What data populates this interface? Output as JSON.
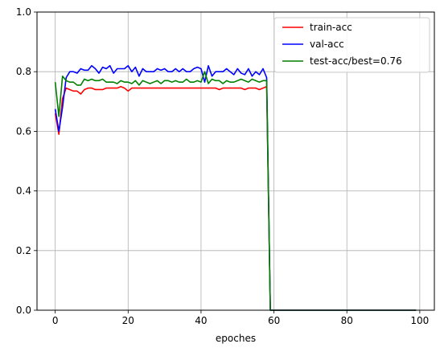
{
  "chart_data": {
    "type": "line",
    "xlabel": "epoches",
    "ylabel": "",
    "xlim": [
      -5,
      104
    ],
    "ylim": [
      0.0,
      1.0
    ],
    "xticks": [
      0,
      20,
      40,
      60,
      80,
      100
    ],
    "yticks": [
      0.0,
      0.2,
      0.4,
      0.6,
      0.8,
      1.0
    ],
    "xtick_labels": [
      "0",
      "20",
      "40",
      "60",
      "80",
      "100"
    ],
    "ytick_labels": [
      "0.0",
      "0.2",
      "0.4",
      "0.6",
      "0.8",
      "1.0"
    ],
    "grid": true,
    "legend_position": "top-right",
    "series": [
      {
        "name": "train-acc",
        "color": "#ff0000",
        "x": [
          0,
          1,
          2,
          3,
          4,
          5,
          6,
          7,
          8,
          9,
          10,
          11,
          12,
          13,
          14,
          15,
          16,
          17,
          18,
          19,
          20,
          21,
          22,
          23,
          24,
          25,
          26,
          27,
          28,
          29,
          30,
          31,
          32,
          33,
          34,
          35,
          36,
          37,
          38,
          39,
          40,
          41,
          42,
          43,
          44,
          45,
          46,
          47,
          48,
          49,
          50,
          51,
          52,
          53,
          54,
          55,
          56,
          57,
          58,
          59,
          60,
          61,
          62,
          63,
          64,
          65,
          66,
          67,
          68,
          69,
          70,
          71,
          72,
          73,
          74,
          75,
          76,
          77,
          78,
          79,
          80,
          81,
          82,
          83,
          84,
          85,
          86,
          87,
          88,
          89,
          90,
          91,
          92,
          93,
          94,
          95,
          96,
          97,
          98,
          99
        ],
        "y": [
          0.66,
          0.59,
          0.71,
          0.745,
          0.74,
          0.735,
          0.735,
          0.725,
          0.74,
          0.745,
          0.745,
          0.74,
          0.74,
          0.74,
          0.745,
          0.745,
          0.745,
          0.745,
          0.75,
          0.745,
          0.735,
          0.745,
          0.745,
          0.745,
          0.745,
          0.745,
          0.745,
          0.745,
          0.745,
          0.745,
          0.745,
          0.745,
          0.745,
          0.745,
          0.745,
          0.745,
          0.745,
          0.745,
          0.745,
          0.745,
          0.745,
          0.745,
          0.745,
          0.745,
          0.745,
          0.74,
          0.745,
          0.745,
          0.745,
          0.745,
          0.745,
          0.745,
          0.74,
          0.745,
          0.745,
          0.745,
          0.74,
          0.745,
          0.75,
          0.0,
          0.0,
          0.0,
          0.0,
          0.0,
          0.0,
          0.0,
          0.0,
          0.0,
          0.0,
          0.0,
          0.0,
          0.0,
          0.0,
          0.0,
          0.0,
          0.0,
          0.0,
          0.0,
          0.0,
          0.0,
          0.0,
          0.0,
          0.0,
          0.0,
          0.0,
          0.0,
          0.0,
          0.0,
          0.0,
          0.0,
          0.0,
          0.0,
          0.0,
          0.0,
          0.0,
          0.0,
          0.0,
          0.0,
          0.0,
          0.0
        ]
      },
      {
        "name": "val-acc",
        "color": "#0000ff",
        "x": [
          0,
          1,
          2,
          3,
          4,
          5,
          6,
          7,
          8,
          9,
          10,
          11,
          12,
          13,
          14,
          15,
          16,
          17,
          18,
          19,
          20,
          21,
          22,
          23,
          24,
          25,
          26,
          27,
          28,
          29,
          30,
          31,
          32,
          33,
          34,
          35,
          36,
          37,
          38,
          39,
          40,
          41,
          42,
          43,
          44,
          45,
          46,
          47,
          48,
          49,
          50,
          51,
          52,
          53,
          54,
          55,
          56,
          57,
          58,
          59,
          60,
          61,
          62,
          63,
          64,
          65,
          66,
          67,
          68,
          69,
          70,
          71,
          72,
          73,
          74,
          75,
          76,
          77,
          78,
          79,
          80,
          81,
          82,
          83,
          84,
          85,
          86,
          87,
          88,
          89,
          90,
          91,
          92,
          93,
          94,
          95,
          96,
          97,
          98,
          99
        ],
        "y": [
          0.675,
          0.6,
          0.68,
          0.78,
          0.8,
          0.8,
          0.795,
          0.81,
          0.805,
          0.805,
          0.82,
          0.81,
          0.795,
          0.815,
          0.81,
          0.82,
          0.795,
          0.81,
          0.81,
          0.81,
          0.82,
          0.8,
          0.815,
          0.785,
          0.81,
          0.8,
          0.8,
          0.8,
          0.81,
          0.805,
          0.81,
          0.8,
          0.8,
          0.81,
          0.8,
          0.81,
          0.8,
          0.8,
          0.81,
          0.815,
          0.81,
          0.765,
          0.82,
          0.785,
          0.8,
          0.8,
          0.8,
          0.81,
          0.8,
          0.79,
          0.81,
          0.795,
          0.79,
          0.81,
          0.785,
          0.8,
          0.79,
          0.81,
          0.78,
          0.0,
          0.0,
          0.0,
          0.0,
          0.0,
          0.0,
          0.0,
          0.0,
          0.0,
          0.0,
          0.0,
          0.0,
          0.0,
          0.0,
          0.0,
          0.0,
          0.0,
          0.0,
          0.0,
          0.0,
          0.0,
          0.0,
          0.0,
          0.0,
          0.0,
          0.0,
          0.0,
          0.0,
          0.0,
          0.0,
          0.0,
          0.0,
          0.0,
          0.0,
          0.0,
          0.0,
          0.0,
          0.0,
          0.0,
          0.0,
          0.0
        ]
      },
      {
        "name": "test-acc/best=0.76",
        "color": "#008000",
        "x": [
          0,
          1,
          2,
          3,
          4,
          5,
          6,
          7,
          8,
          9,
          10,
          11,
          12,
          13,
          14,
          15,
          16,
          17,
          18,
          19,
          20,
          21,
          22,
          23,
          24,
          25,
          26,
          27,
          28,
          29,
          30,
          31,
          32,
          33,
          34,
          35,
          36,
          37,
          38,
          39,
          40,
          41,
          42,
          43,
          44,
          45,
          46,
          47,
          48,
          49,
          50,
          51,
          52,
          53,
          54,
          55,
          56,
          57,
          58,
          59,
          60,
          61,
          62,
          63,
          64,
          65,
          66,
          67,
          68,
          69,
          70,
          71,
          72,
          73,
          74,
          75,
          76,
          77,
          78,
          79,
          80,
          81,
          82,
          83,
          84,
          85,
          86,
          87,
          88,
          89,
          90,
          91,
          92,
          93,
          94,
          95,
          96,
          97,
          98,
          99
        ],
        "y": [
          0.765,
          0.65,
          0.785,
          0.77,
          0.765,
          0.765,
          0.755,
          0.755,
          0.775,
          0.77,
          0.775,
          0.77,
          0.77,
          0.775,
          0.765,
          0.765,
          0.765,
          0.76,
          0.77,
          0.765,
          0.765,
          0.76,
          0.77,
          0.755,
          0.77,
          0.765,
          0.76,
          0.765,
          0.77,
          0.76,
          0.77,
          0.77,
          0.765,
          0.77,
          0.765,
          0.765,
          0.775,
          0.765,
          0.765,
          0.77,
          0.765,
          0.8,
          0.76,
          0.775,
          0.77,
          0.77,
          0.76,
          0.77,
          0.765,
          0.765,
          0.77,
          0.775,
          0.77,
          0.765,
          0.775,
          0.77,
          0.765,
          0.77,
          0.77,
          0.0,
          0.0,
          0.0,
          0.0,
          0.0,
          0.0,
          0.0,
          0.0,
          0.0,
          0.0,
          0.0,
          0.0,
          0.0,
          0.0,
          0.0,
          0.0,
          0.0,
          0.0,
          0.0,
          0.0,
          0.0,
          0.0,
          0.0,
          0.0,
          0.0,
          0.0,
          0.0,
          0.0,
          0.0,
          0.0,
          0.0,
          0.0,
          0.0,
          0.0,
          0.0,
          0.0,
          0.0,
          0.0,
          0.0,
          0.0,
          0.0
        ]
      }
    ]
  }
}
